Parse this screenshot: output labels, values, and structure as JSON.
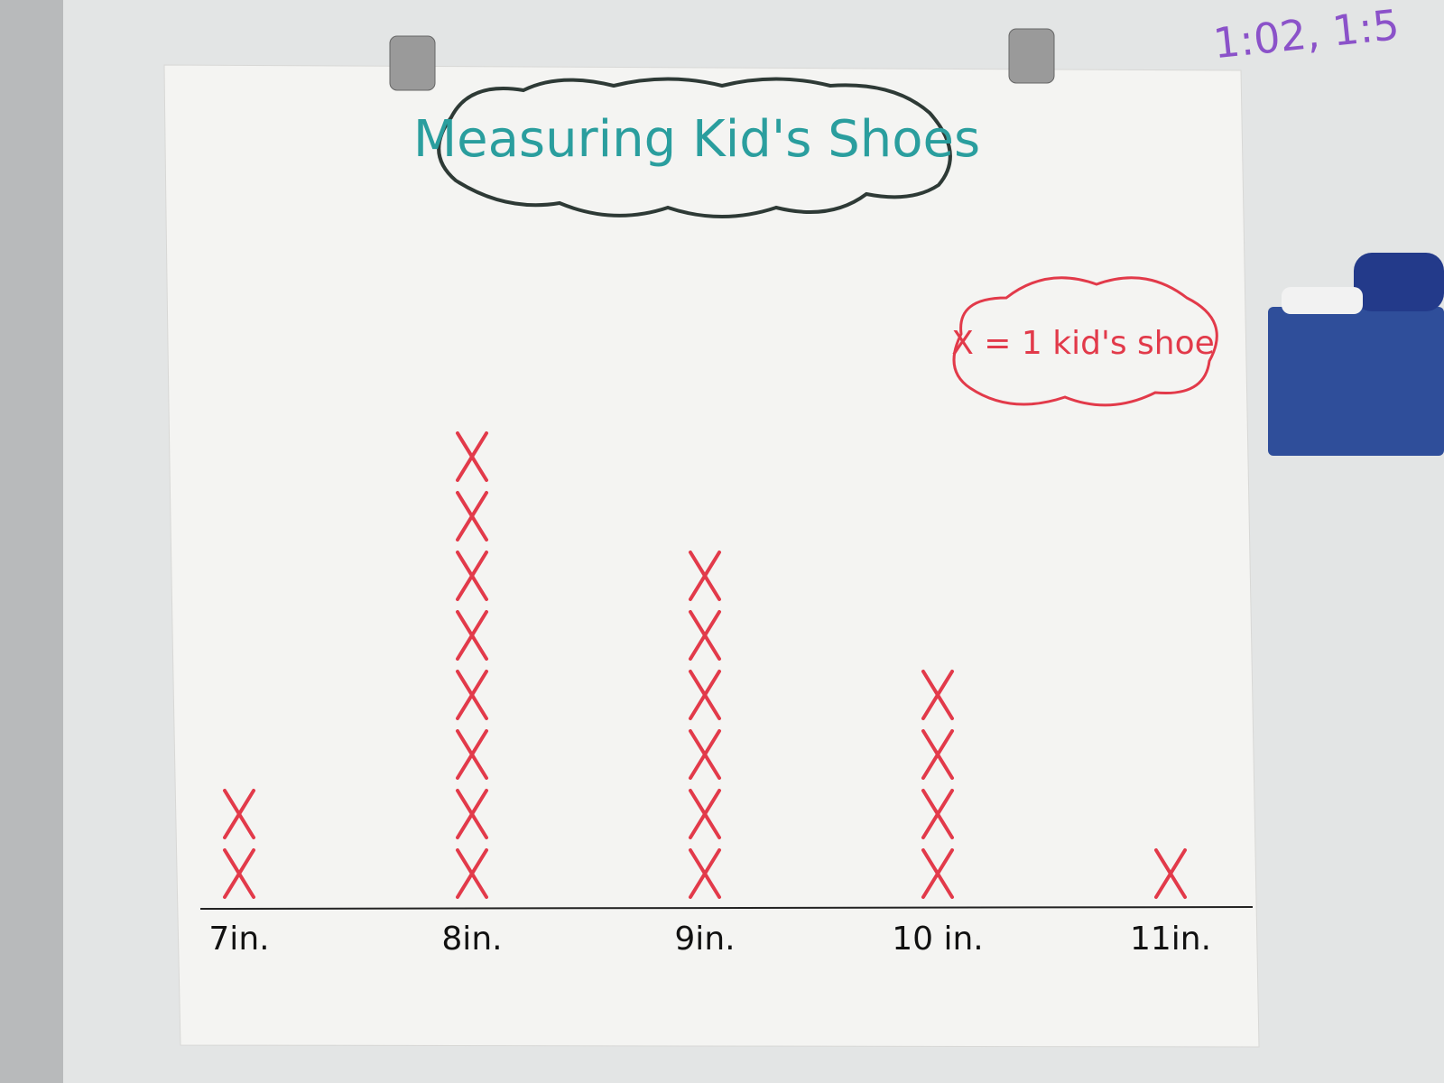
{
  "chart_data": {
    "type": "lineplot",
    "title": "Measuring Kid's Shoes",
    "legend": "X = 1 kid's shoe",
    "board_note": "1:02, 1:5",
    "categories": [
      "7in.",
      "8in.",
      "9in.",
      "10 in.",
      "11in."
    ],
    "values": [
      2,
      8,
      6,
      4,
      1
    ],
    "color": "#e23a4a",
    "title_color": "#2a9e9e"
  }
}
